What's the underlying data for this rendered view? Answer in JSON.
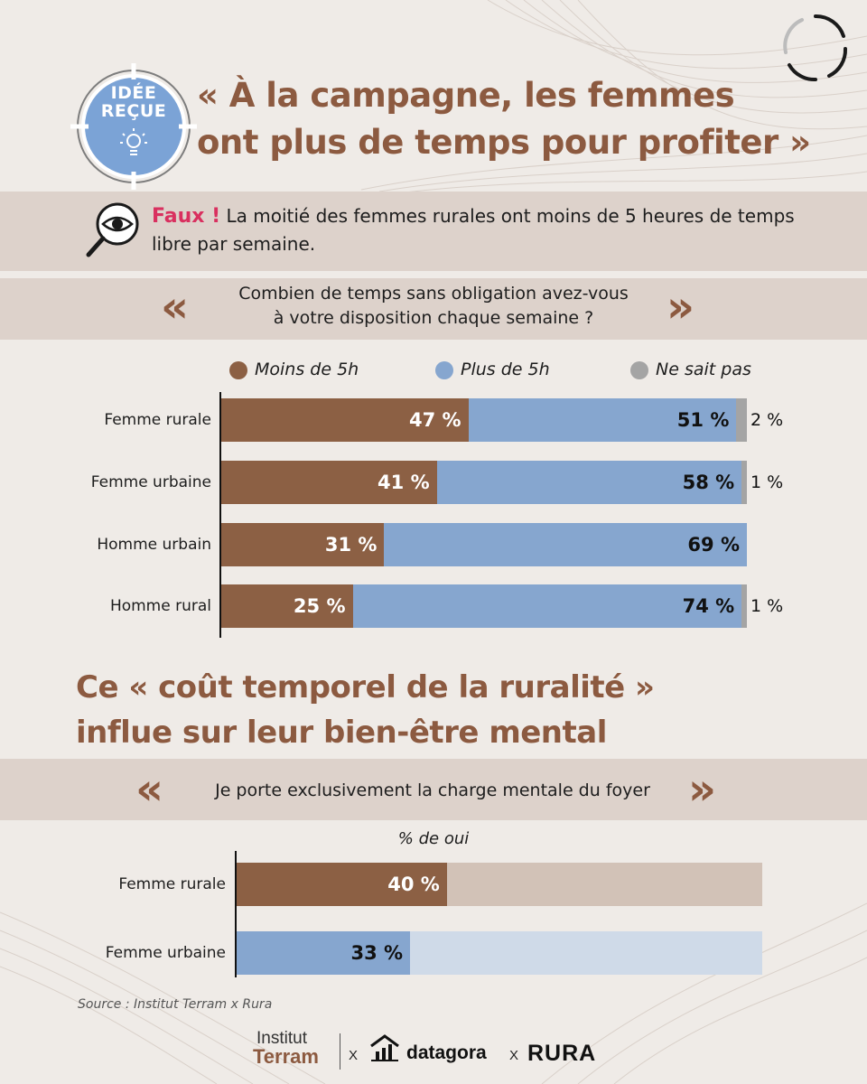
{
  "header": {
    "badge_line1": "IDÉE",
    "badge_line2": "REÇUE",
    "title_line1": "« À la campagne, les femmes",
    "title_line2": "ont plus de temps pour profiter »"
  },
  "finding": {
    "label": "Faux !",
    "text": "La moitié des femmes rurales ont moins de 5 heures de temps libre par semaine."
  },
  "question1": {
    "line1": "Combien de temps sans obligation avez-vous",
    "line2": "à votre disposition chaque semaine ?"
  },
  "colors": {
    "brown": "#8c6044",
    "blue": "#86a6cf",
    "gray": "#a4a4a4",
    "brown_light": "#d2c2b7",
    "blue_light": "#cfdae8",
    "title_brown": "#8c5a40",
    "alert_red": "#d9305f"
  },
  "chart_data": [
    {
      "type": "bar",
      "orientation": "horizontal",
      "stacked": true,
      "categories": [
        "Femme rurale",
        "Femme urbaine",
        "Homme urbain",
        "Homme rural"
      ],
      "series": [
        {
          "name": "Moins de 5h",
          "values": [
            47,
            41,
            31,
            25
          ],
          "labels": [
            "47 %",
            "41 %",
            "31 %",
            "25 %"
          ]
        },
        {
          "name": "Plus de 5h",
          "values": [
            51,
            58,
            69,
            74
          ],
          "labels": [
            "51 %",
            "58 %",
            "69 %",
            "74 %"
          ]
        },
        {
          "name": "Ne sait pas",
          "values": [
            2,
            1,
            0,
            1
          ],
          "labels": [
            "2 %",
            "1 %",
            "",
            "1 %"
          ]
        }
      ],
      "xlim": [
        0,
        100
      ]
    },
    {
      "type": "bar",
      "orientation": "horizontal",
      "title": "% de oui",
      "categories": [
        "Femme rurale",
        "Femme urbaine"
      ],
      "values": [
        40,
        33
      ],
      "labels": [
        "40 %",
        "33 %"
      ],
      "xlim": [
        0,
        100
      ]
    }
  ],
  "section2": {
    "title_line1": "Ce « coût temporel de la ruralité »",
    "title_line2": "influe sur leur bien-être mental"
  },
  "question2": {
    "text": "Je porte exclusivement la charge mentale du foyer"
  },
  "source": "Source : Institut Terram x Rura",
  "footer": {
    "logo1_line1": "Institut",
    "logo1_line2": "Terram",
    "sep1": "X",
    "logo2": "datagora",
    "sep2": "X",
    "logo3": "RURA"
  }
}
